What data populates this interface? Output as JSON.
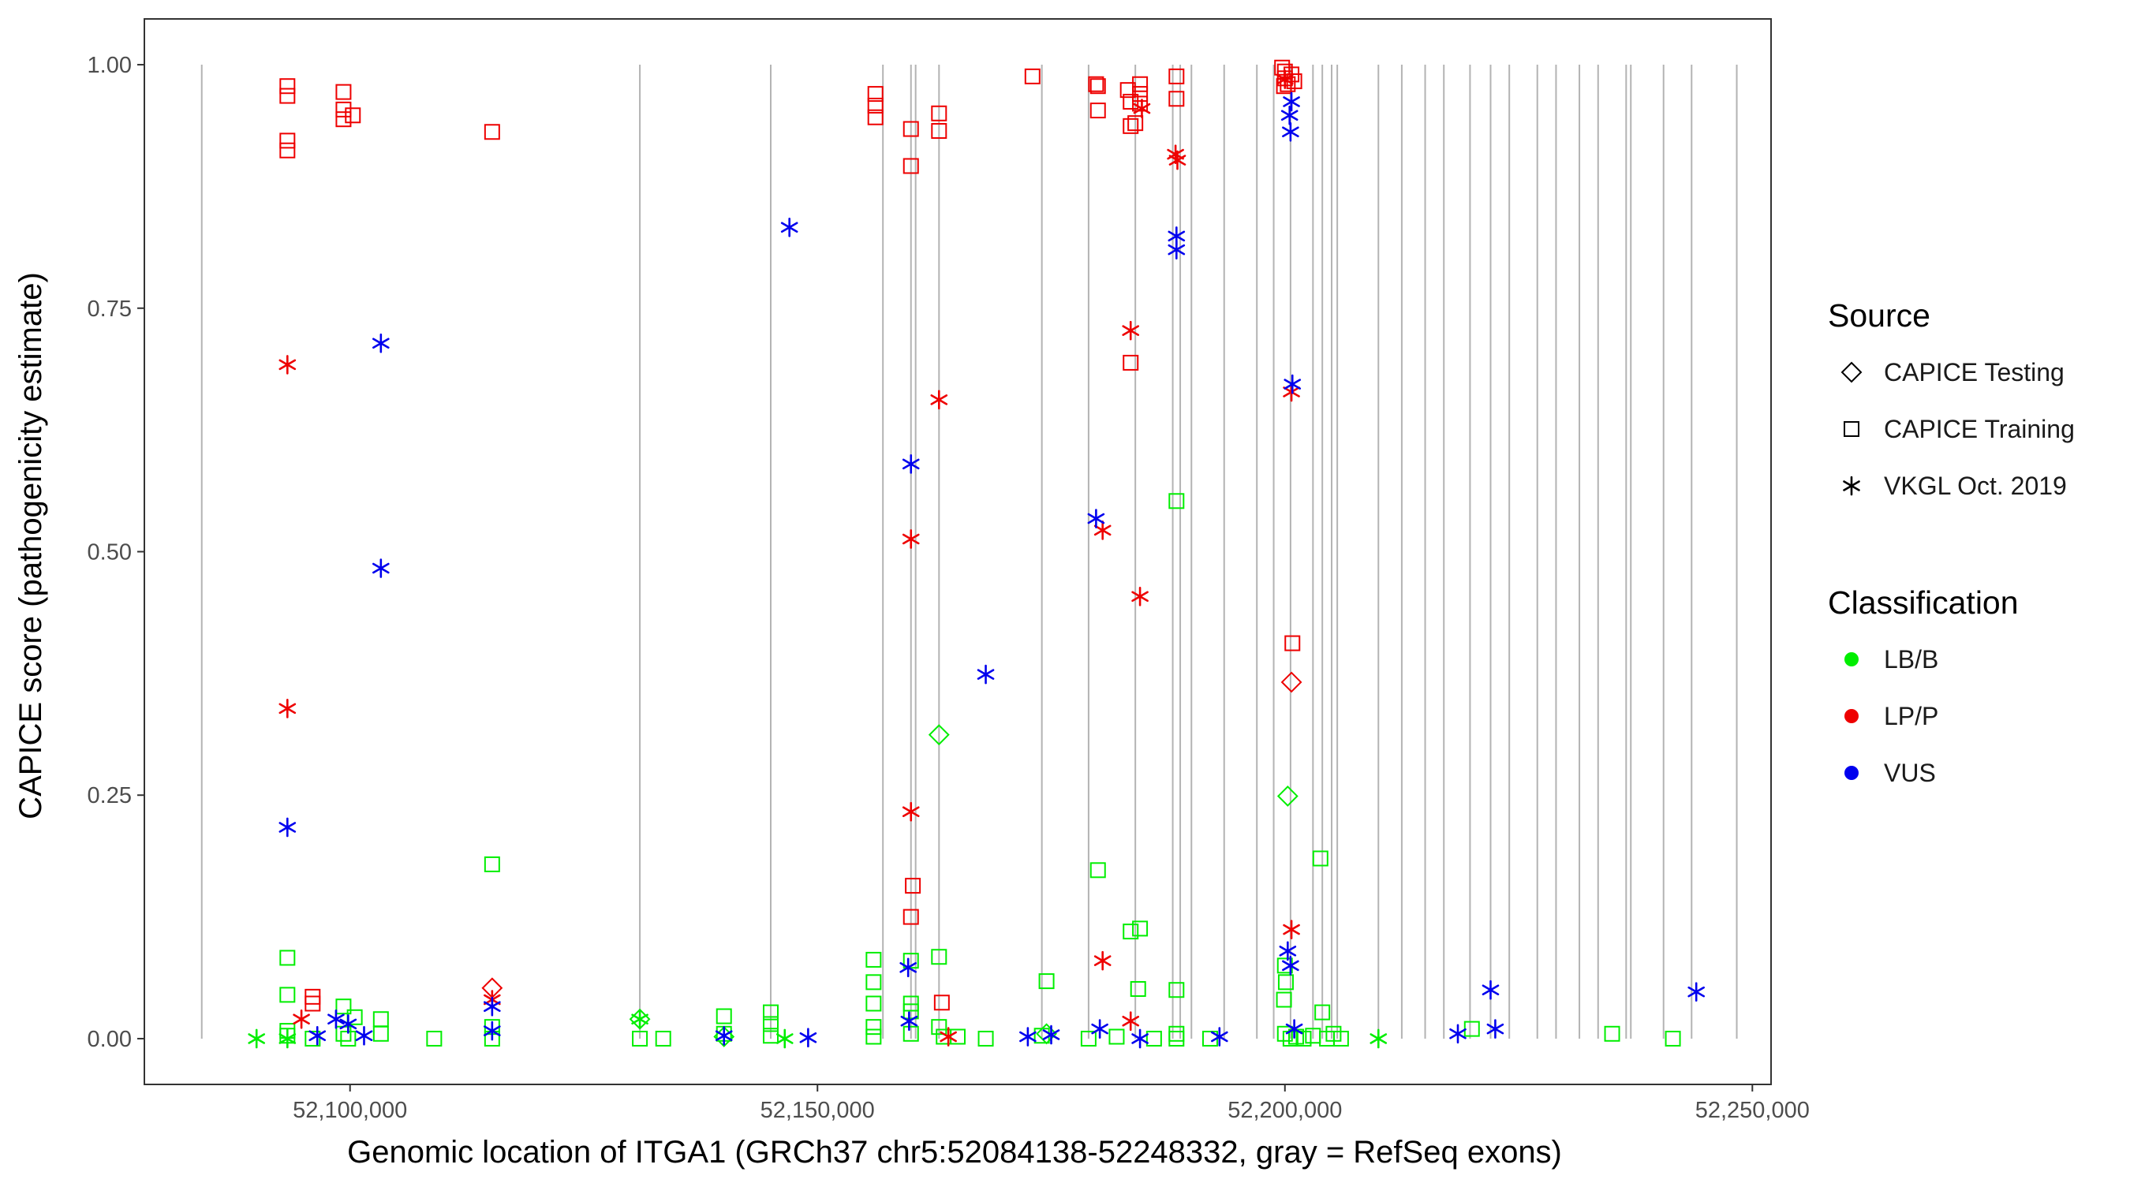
{
  "chart_data": {
    "type": "scatter",
    "title": "",
    "xlabel": "Genomic location of ITGA1 (GRCh37 chr5:52084138-52248332, gray = RefSeq exons)",
    "ylabel": "CAPICE score (pathogenicity estimate)",
    "xlim": [
      52078000,
      52252000
    ],
    "ylim": [
      -0.047,
      1.047
    ],
    "x_ticks": [
      52100000,
      52150000,
      52200000,
      52250000
    ],
    "x_tick_labels": [
      "52,100,000",
      "52,150,000",
      "52,200,000",
      "52,250,000"
    ],
    "y_ticks": [
      0,
      0.25,
      0.5,
      0.75,
      1.0
    ],
    "y_tick_labels": [
      "0.00",
      "0.25",
      "0.50",
      "0.75",
      "1.00"
    ],
    "grid": false,
    "exons": [
      52084138,
      52131000,
      52145000,
      52157000,
      52160000,
      52160500,
      52163000,
      52174000,
      52179000,
      52184000,
      52188000,
      52188800,
      52190000,
      52193500,
      52197000,
      52198800,
      52200600,
      52203000,
      52204000,
      52205000,
      52205600,
      52210000,
      52212500,
      52215000,
      52217000,
      52219800,
      52222000,
      52224000,
      52227000,
      52229000,
      52231500,
      52233500,
      52236500,
      52237000,
      52240500,
      52243500,
      52248332
    ],
    "legend": {
      "source_title": "Source",
      "source_items": [
        {
          "label": "CAPICE Testing",
          "shape": "diamond"
        },
        {
          "label": "CAPICE Training",
          "shape": "square"
        },
        {
          "label": "VKGL Oct. 2019",
          "shape": "asterisk"
        }
      ],
      "class_title": "Classification",
      "class_items": [
        {
          "label": "LB/B",
          "color": "#00ee00"
        },
        {
          "label": "LP/P",
          "color": "#ee0000"
        },
        {
          "label": "VUS",
          "color": "#0000ee"
        }
      ]
    },
    "series": [
      {
        "name": "CAPICE Training",
        "points": [
          {
            "x": 52093300,
            "y": 0.978,
            "c": "LP/P"
          },
          {
            "x": 52093300,
            "y": 0.968,
            "c": "LP/P"
          },
          {
            "x": 52093300,
            "y": 0.922,
            "c": "LP/P"
          },
          {
            "x": 52093300,
            "y": 0.912,
            "c": "LP/P"
          },
          {
            "x": 52099300,
            "y": 0.972,
            "c": "LP/P"
          },
          {
            "x": 52099300,
            "y": 0.954,
            "c": "LP/P"
          },
          {
            "x": 52099300,
            "y": 0.944,
            "c": "LP/P"
          },
          {
            "x": 52100300,
            "y": 0.948,
            "c": "LP/P"
          },
          {
            "x": 52115200,
            "y": 0.931,
            "c": "LP/P"
          },
          {
            "x": 52096000,
            "y": 0.043,
            "c": "LP/P"
          },
          {
            "x": 52096000,
            "y": 0.036,
            "c": "LP/P"
          },
          {
            "x": 52156200,
            "y": 0.97,
            "c": "LP/P"
          },
          {
            "x": 52156200,
            "y": 0.958,
            "c": "LP/P"
          },
          {
            "x": 52156200,
            "y": 0.946,
            "c": "LP/P"
          },
          {
            "x": 52160000,
            "y": 0.934,
            "c": "LP/P"
          },
          {
            "x": 52160000,
            "y": 0.896,
            "c": "LP/P"
          },
          {
            "x": 52163000,
            "y": 0.95,
            "c": "LP/P"
          },
          {
            "x": 52163000,
            "y": 0.932,
            "c": "LP/P"
          },
          {
            "x": 52173000,
            "y": 0.988,
            "c": "LP/P"
          },
          {
            "x": 52179800,
            "y": 0.98,
            "c": "LP/P"
          },
          {
            "x": 52180000,
            "y": 0.978,
            "c": "LP/P"
          },
          {
            "x": 52180000,
            "y": 0.953,
            "c": "LP/P"
          },
          {
            "x": 52183200,
            "y": 0.974,
            "c": "LP/P"
          },
          {
            "x": 52183500,
            "y": 0.962,
            "c": "LP/P"
          },
          {
            "x": 52183500,
            "y": 0.937,
            "c": "LP/P"
          },
          {
            "x": 52184000,
            "y": 0.94,
            "c": "LP/P"
          },
          {
            "x": 52184500,
            "y": 0.98,
            "c": "LP/P"
          },
          {
            "x": 52184500,
            "y": 0.97,
            "c": "LP/P"
          },
          {
            "x": 52184500,
            "y": 0.96,
            "c": "LP/P"
          },
          {
            "x": 52188400,
            "y": 0.988,
            "c": "LP/P"
          },
          {
            "x": 52188400,
            "y": 0.965,
            "c": "LP/P"
          },
          {
            "x": 52183500,
            "y": 0.694,
            "c": "LP/P"
          },
          {
            "x": 52160200,
            "y": 0.157,
            "c": "LP/P"
          },
          {
            "x": 52160000,
            "y": 0.125,
            "c": "LP/P"
          },
          {
            "x": 52163300,
            "y": 0.037,
            "c": "LP/P"
          },
          {
            "x": 52199700,
            "y": 0.997,
            "c": "LP/P"
          },
          {
            "x": 52200000,
            "y": 0.993,
            "c": "LP/P"
          },
          {
            "x": 52200000,
            "y": 0.986,
            "c": "LP/P"
          },
          {
            "x": 52200300,
            "y": 0.98,
            "c": "LP/P"
          },
          {
            "x": 52200700,
            "y": 0.99,
            "c": "LP/P"
          },
          {
            "x": 52201000,
            "y": 0.983,
            "c": "LP/P"
          },
          {
            "x": 52199900,
            "y": 0.978,
            "c": "LP/P"
          },
          {
            "x": 52200800,
            "y": 0.406,
            "c": "LP/P"
          },
          {
            "x": 52093300,
            "y": 0.083,
            "c": "LB/B"
          },
          {
            "x": 52093300,
            "y": 0.045,
            "c": "LB/B"
          },
          {
            "x": 52093300,
            "y": 0.008,
            "c": "LB/B"
          },
          {
            "x": 52093300,
            "y": 0.003,
            "c": "LB/B"
          },
          {
            "x": 52096000,
            "y": 0.0,
            "c": "LB/B"
          },
          {
            "x": 52099300,
            "y": 0.033,
            "c": "LB/B"
          },
          {
            "x": 52099300,
            "y": 0.005,
            "c": "LB/B"
          },
          {
            "x": 52099800,
            "y": 0.0,
            "c": "LB/B"
          },
          {
            "x": 52100500,
            "y": 0.022,
            "c": "LB/B"
          },
          {
            "x": 52103300,
            "y": 0.02,
            "c": "LB/B"
          },
          {
            "x": 52103300,
            "y": 0.005,
            "c": "LB/B"
          },
          {
            "x": 52109000,
            "y": 0.0,
            "c": "LB/B"
          },
          {
            "x": 52115200,
            "y": 0.179,
            "c": "LB/B"
          },
          {
            "x": 52115200,
            "y": 0.012,
            "c": "LB/B"
          },
          {
            "x": 52115200,
            "y": 0.0,
            "c": "LB/B"
          },
          {
            "x": 52131000,
            "y": 0.0,
            "c": "LB/B"
          },
          {
            "x": 52133500,
            "y": 0.0,
            "c": "LB/B"
          },
          {
            "x": 52140000,
            "y": 0.023,
            "c": "LB/B"
          },
          {
            "x": 52140000,
            "y": 0.005,
            "c": "LB/B"
          },
          {
            "x": 52145000,
            "y": 0.027,
            "c": "LB/B"
          },
          {
            "x": 52145000,
            "y": 0.015,
            "c": "LB/B"
          },
          {
            "x": 52145000,
            "y": 0.003,
            "c": "LB/B"
          },
          {
            "x": 52156000,
            "y": 0.081,
            "c": "LB/B"
          },
          {
            "x": 52156000,
            "y": 0.058,
            "c": "LB/B"
          },
          {
            "x": 52156000,
            "y": 0.036,
            "c": "LB/B"
          },
          {
            "x": 52156000,
            "y": 0.012,
            "c": "LB/B"
          },
          {
            "x": 52156000,
            "y": 0.002,
            "c": "LB/B"
          },
          {
            "x": 52160000,
            "y": 0.08,
            "c": "LB/B"
          },
          {
            "x": 52160000,
            "y": 0.036,
            "c": "LB/B"
          },
          {
            "x": 52160000,
            "y": 0.028,
            "c": "LB/B"
          },
          {
            "x": 52160000,
            "y": 0.005,
            "c": "LB/B"
          },
          {
            "x": 52163000,
            "y": 0.084,
            "c": "LB/B"
          },
          {
            "x": 52163000,
            "y": 0.012,
            "c": "LB/B"
          },
          {
            "x": 52163500,
            "y": 0.002,
            "c": "LB/B"
          },
          {
            "x": 52165000,
            "y": 0.002,
            "c": "LB/B"
          },
          {
            "x": 52168000,
            "y": 0.0,
            "c": "LB/B"
          },
          {
            "x": 52174500,
            "y": 0.059,
            "c": "LB/B"
          },
          {
            "x": 52174000,
            "y": 0.003,
            "c": "LB/B"
          },
          {
            "x": 52179000,
            "y": 0.0,
            "c": "LB/B"
          },
          {
            "x": 52180000,
            "y": 0.173,
            "c": "LB/B"
          },
          {
            "x": 52183500,
            "y": 0.11,
            "c": "LB/B"
          },
          {
            "x": 52184500,
            "y": 0.113,
            "c": "LB/B"
          },
          {
            "x": 52184300,
            "y": 0.051,
            "c": "LB/B"
          },
          {
            "x": 52182000,
            "y": 0.002,
            "c": "LB/B"
          },
          {
            "x": 52186000,
            "y": 0.0,
            "c": "LB/B"
          },
          {
            "x": 52188400,
            "y": 0.552,
            "c": "LB/B"
          },
          {
            "x": 52188400,
            "y": 0.05,
            "c": "LB/B"
          },
          {
            "x": 52188400,
            "y": 0.005,
            "c": "LB/B"
          },
          {
            "x": 52188400,
            "y": 0.0,
            "c": "LB/B"
          },
          {
            "x": 52192000,
            "y": 0.0,
            "c": "LB/B"
          },
          {
            "x": 52200000,
            "y": 0.075,
            "c": "LB/B"
          },
          {
            "x": 52200100,
            "y": 0.058,
            "c": "LB/B"
          },
          {
            "x": 52199900,
            "y": 0.04,
            "c": "LB/B"
          },
          {
            "x": 52200000,
            "y": 0.005,
            "c": "LB/B"
          },
          {
            "x": 52200600,
            "y": 0.0,
            "c": "LB/B"
          },
          {
            "x": 52201200,
            "y": 0.002,
            "c": "LB/B"
          },
          {
            "x": 52202000,
            "y": 0.0,
            "c": "LB/B"
          },
          {
            "x": 52203000,
            "y": 0.003,
            "c": "LB/B"
          },
          {
            "x": 52203800,
            "y": 0.185,
            "c": "LB/B"
          },
          {
            "x": 52204000,
            "y": 0.027,
            "c": "LB/B"
          },
          {
            "x": 52204500,
            "y": 0.0,
            "c": "LB/B"
          },
          {
            "x": 52205200,
            "y": 0.005,
            "c": "LB/B"
          },
          {
            "x": 52206000,
            "y": 0.0,
            "c": "LB/B"
          },
          {
            "x": 52220000,
            "y": 0.01,
            "c": "LB/B"
          },
          {
            "x": 52235000,
            "y": 0.005,
            "c": "LB/B"
          },
          {
            "x": 52241500,
            "y": 0.0,
            "c": "LB/B"
          }
        ]
      },
      {
        "name": "CAPICE Testing",
        "points": [
          {
            "x": 52115200,
            "y": 0.052,
            "c": "LP/P"
          },
          {
            "x": 52200700,
            "y": 0.366,
            "c": "LP/P"
          },
          {
            "x": 52163000,
            "y": 0.312,
            "c": "LB/B"
          },
          {
            "x": 52200300,
            "y": 0.249,
            "c": "LB/B"
          },
          {
            "x": 52131000,
            "y": 0.02,
            "c": "LB/B"
          },
          {
            "x": 52140000,
            "y": 0.002,
            "c": "LB/B"
          },
          {
            "x": 52174500,
            "y": 0.005,
            "c": "LB/B"
          }
        ]
      },
      {
        "name": "VKGL Oct. 2019",
        "points": [
          {
            "x": 52093300,
            "y": 0.692,
            "c": "LP/P"
          },
          {
            "x": 52093300,
            "y": 0.339,
            "c": "LP/P"
          },
          {
            "x": 52094800,
            "y": 0.02,
            "c": "LP/P"
          },
          {
            "x": 52115200,
            "y": 0.04,
            "c": "LP/P"
          },
          {
            "x": 52163000,
            "y": 0.656,
            "c": "LP/P"
          },
          {
            "x": 52160000,
            "y": 0.513,
            "c": "LP/P"
          },
          {
            "x": 52160000,
            "y": 0.233,
            "c": "LP/P"
          },
          {
            "x": 52164000,
            "y": 0.002,
            "c": "LP/P"
          },
          {
            "x": 52183500,
            "y": 0.727,
            "c": "LP/P"
          },
          {
            "x": 52180500,
            "y": 0.522,
            "c": "LP/P"
          },
          {
            "x": 52184500,
            "y": 0.454,
            "c": "LP/P"
          },
          {
            "x": 52180500,
            "y": 0.08,
            "c": "LP/P"
          },
          {
            "x": 52183500,
            "y": 0.018,
            "c": "LP/P"
          },
          {
            "x": 52184700,
            "y": 0.955,
            "c": "LP/P"
          },
          {
            "x": 52188300,
            "y": 0.908,
            "c": "LP/P"
          },
          {
            "x": 52188500,
            "y": 0.902,
            "c": "LP/P"
          },
          {
            "x": 52200700,
            "y": 0.664,
            "c": "LP/P"
          },
          {
            "x": 52200700,
            "y": 0.112,
            "c": "LP/P"
          },
          {
            "x": 52200000,
            "y": 0.985,
            "c": "LP/P"
          },
          {
            "x": 52093300,
            "y": 0.217,
            "c": "VUS"
          },
          {
            "x": 52103300,
            "y": 0.714,
            "c": "VUS"
          },
          {
            "x": 52103300,
            "y": 0.483,
            "c": "VUS"
          },
          {
            "x": 52098500,
            "y": 0.02,
            "c": "VUS"
          },
          {
            "x": 52099800,
            "y": 0.015,
            "c": "VUS"
          },
          {
            "x": 52096500,
            "y": 0.003,
            "c": "VUS"
          },
          {
            "x": 52101500,
            "y": 0.003,
            "c": "VUS"
          },
          {
            "x": 52115200,
            "y": 0.033,
            "c": "VUS"
          },
          {
            "x": 52115200,
            "y": 0.008,
            "c": "VUS"
          },
          {
            "x": 52147000,
            "y": 0.833,
            "c": "VUS"
          },
          {
            "x": 52160000,
            "y": 0.59,
            "c": "VUS"
          },
          {
            "x": 52159700,
            "y": 0.073,
            "c": "VUS"
          },
          {
            "x": 52159800,
            "y": 0.018,
            "c": "VUS"
          },
          {
            "x": 52168000,
            "y": 0.374,
            "c": "VUS"
          },
          {
            "x": 52149000,
            "y": 0.001,
            "c": "VUS"
          },
          {
            "x": 52140000,
            "y": 0.003,
            "c": "VUS"
          },
          {
            "x": 52172500,
            "y": 0.002,
            "c": "VUS"
          },
          {
            "x": 52175000,
            "y": 0.004,
            "c": "VUS"
          },
          {
            "x": 52179800,
            "y": 0.534,
            "c": "VUS"
          },
          {
            "x": 52180200,
            "y": 0.01,
            "c": "VUS"
          },
          {
            "x": 52184500,
            "y": 0.0,
            "c": "VUS"
          },
          {
            "x": 52188400,
            "y": 0.824,
            "c": "VUS"
          },
          {
            "x": 52188400,
            "y": 0.81,
            "c": "VUS"
          },
          {
            "x": 52193000,
            "y": 0.002,
            "c": "VUS"
          },
          {
            "x": 52200700,
            "y": 0.962,
            "c": "VUS"
          },
          {
            "x": 52200500,
            "y": 0.948,
            "c": "VUS"
          },
          {
            "x": 52200600,
            "y": 0.931,
            "c": "VUS"
          },
          {
            "x": 52200800,
            "y": 0.672,
            "c": "VUS"
          },
          {
            "x": 52200300,
            "y": 0.09,
            "c": "VUS"
          },
          {
            "x": 52200600,
            "y": 0.075,
            "c": "VUS"
          },
          {
            "x": 52201000,
            "y": 0.01,
            "c": "VUS"
          },
          {
            "x": 52218500,
            "y": 0.005,
            "c": "VUS"
          },
          {
            "x": 52222000,
            "y": 0.05,
            "c": "VUS"
          },
          {
            "x": 52222500,
            "y": 0.01,
            "c": "VUS"
          },
          {
            "x": 52244000,
            "y": 0.048,
            "c": "VUS"
          },
          {
            "x": 52090000,
            "y": 0.0,
            "c": "LB/B"
          },
          {
            "x": 52093300,
            "y": 0.0,
            "c": "LB/B"
          },
          {
            "x": 52131000,
            "y": 0.02,
            "c": "LB/B"
          },
          {
            "x": 52146500,
            "y": 0.0,
            "c": "LB/B"
          },
          {
            "x": 52210000,
            "y": 0.0,
            "c": "LB/B"
          }
        ]
      }
    ]
  }
}
